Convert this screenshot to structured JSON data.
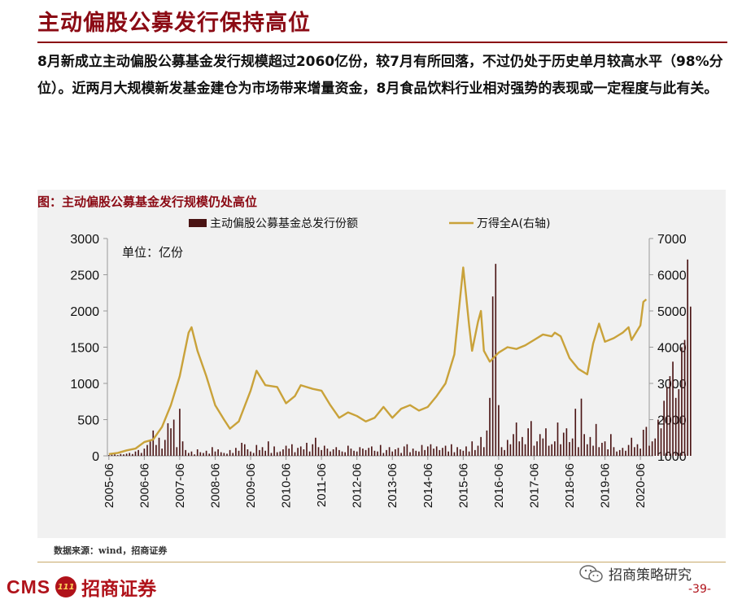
{
  "page": {
    "title": "主动偏股公募发行保持高位",
    "intro": "8月新成立主动偏股公募基金发行规模超过2060亿份，较7月有所回落，不过仍处于历史单月较高水平（98%分位）。近两月大规模新发基金建仓为市场带来增量资金，8月食品饮料行业相对强势的表现或一定程度与此有关。",
    "source": "数据来源：wind，招商证券",
    "logo_cms": "CMS",
    "logo_badge": "111",
    "logo_cn": "招商证券",
    "wechat_name": "招商策略研究",
    "page_number": "-39-"
  },
  "colors": {
    "title": "#8b0a14",
    "bar": "#4a1414",
    "line": "#c9a23a",
    "panel": "#f1f1f1",
    "brand": "#b0121a"
  },
  "icons": [
    "wechat-icon",
    "logo-badge-icon"
  ],
  "chart_data": {
    "type": "bar+line",
    "title": "图：主动偏股公募基金发行规模仍处高位",
    "unit_note": "单位：亿份",
    "legend_position": "top",
    "x_tick_labels": [
      "2005-06",
      "2006-06",
      "2007-06",
      "2008-06",
      "2009-06",
      "2010-06",
      "2011-06",
      "2012-06",
      "2013-06",
      "2014-06",
      "2015-06",
      "2016-06",
      "2017-06",
      "2018-06",
      "2019-06",
      "2020-06"
    ],
    "y_left": {
      "min": 0,
      "max": 3000,
      "ticks": [
        0,
        500,
        1000,
        1500,
        2000,
        2500,
        3000
      ]
    },
    "y_right": {
      "min": 1000,
      "max": 7000,
      "ticks": [
        1000,
        2000,
        3000,
        4000,
        5000,
        6000,
        7000
      ]
    },
    "grid": false,
    "series": [
      {
        "name": "主动偏股公募基金总发行份额",
        "type": "bar",
        "axis": "left",
        "start": "2005-06",
        "frequency": "monthly",
        "values": [
          10,
          15,
          20,
          10,
          25,
          20,
          30,
          40,
          25,
          60,
          80,
          40,
          100,
          150,
          200,
          350,
          150,
          250,
          100,
          220,
          450,
          380,
          500,
          120,
          650,
          200,
          80,
          40,
          60,
          20,
          90,
          50,
          40,
          70,
          30,
          120,
          60,
          90,
          50,
          40,
          30,
          80,
          40,
          110,
          70,
          180,
          160,
          90,
          60,
          40,
          150,
          80,
          120,
          70,
          200,
          40,
          130,
          50,
          60,
          90,
          140,
          100,
          160,
          50,
          110,
          130,
          90,
          180,
          60,
          160,
          250,
          120,
          80,
          140,
          100,
          60,
          90,
          120,
          80,
          60,
          50,
          140,
          100,
          70,
          60,
          120,
          100,
          80,
          110,
          130,
          70,
          60,
          150,
          40,
          80,
          120,
          60,
          90,
          110,
          40,
          130,
          160,
          50,
          100,
          70,
          60,
          150,
          80,
          130,
          160,
          100,
          130,
          80,
          110,
          140,
          60,
          160,
          50,
          120,
          90,
          70,
          130,
          60,
          200,
          80,
          140,
          260,
          120,
          350,
          800,
          2200,
          2650,
          700,
          120,
          80,
          220,
          160,
          300,
          460,
          200,
          260,
          160,
          380,
          480,
          140,
          200,
          300,
          240,
          380,
          140,
          160,
          200,
          460,
          160,
          320,
          380,
          190,
          240,
          650,
          120,
          790,
          300,
          160,
          260,
          140,
          440,
          120,
          180,
          200,
          90,
          300,
          120,
          60,
          80,
          110,
          70,
          150,
          250,
          120,
          160,
          100,
          360,
          400,
          140,
          200,
          240,
          500,
          380,
          760,
          950,
          1100,
          1300,
          800,
          920,
          1500,
          1600,
          2710,
          2060
        ]
      },
      {
        "name": "万得全A(右轴)",
        "type": "line",
        "axis": "right",
        "points": [
          [
            "2005-06",
            1050
          ],
          [
            "2005-09",
            1080
          ],
          [
            "2005-12",
            1150
          ],
          [
            "2006-03",
            1200
          ],
          [
            "2006-06",
            1380
          ],
          [
            "2006-09",
            1450
          ],
          [
            "2006-12",
            1800
          ],
          [
            "2007-03",
            2400
          ],
          [
            "2007-06",
            3200
          ],
          [
            "2007-09",
            4400
          ],
          [
            "2007-10",
            4550
          ],
          [
            "2007-12",
            3900
          ],
          [
            "2008-03",
            3200
          ],
          [
            "2008-06",
            2400
          ],
          [
            "2008-09",
            2000
          ],
          [
            "2008-11",
            1750
          ],
          [
            "2009-02",
            1950
          ],
          [
            "2009-06",
            2800
          ],
          [
            "2009-08",
            3350
          ],
          [
            "2009-11",
            2950
          ],
          [
            "2010-03",
            2900
          ],
          [
            "2010-06",
            2450
          ],
          [
            "2010-09",
            2650
          ],
          [
            "2010-11",
            2950
          ],
          [
            "2011-03",
            2850
          ],
          [
            "2011-06",
            2800
          ],
          [
            "2011-09",
            2400
          ],
          [
            "2011-12",
            2050
          ],
          [
            "2012-03",
            2200
          ],
          [
            "2012-06",
            2100
          ],
          [
            "2012-09",
            1950
          ],
          [
            "2012-12",
            2050
          ],
          [
            "2013-03",
            2350
          ],
          [
            "2013-06",
            2050
          ],
          [
            "2013-09",
            2300
          ],
          [
            "2013-12",
            2400
          ],
          [
            "2014-03",
            2250
          ],
          [
            "2014-06",
            2350
          ],
          [
            "2014-09",
            2650
          ],
          [
            "2014-12",
            3000
          ],
          [
            "2015-03",
            3800
          ],
          [
            "2015-06",
            6200
          ],
          [
            "2015-08",
            4600
          ],
          [
            "2015-09",
            3900
          ],
          [
            "2015-11",
            4700
          ],
          [
            "2015-12",
            5000
          ],
          [
            "2016-01",
            3900
          ],
          [
            "2016-03",
            3600
          ],
          [
            "2016-06",
            3850
          ],
          [
            "2016-09",
            4000
          ],
          [
            "2016-12",
            3950
          ],
          [
            "2017-03",
            4050
          ],
          [
            "2017-06",
            4200
          ],
          [
            "2017-09",
            4350
          ],
          [
            "2017-12",
            4300
          ],
          [
            "2018-01",
            4400
          ],
          [
            "2018-03",
            4300
          ],
          [
            "2018-06",
            3700
          ],
          [
            "2018-09",
            3400
          ],
          [
            "2018-12",
            3250
          ],
          [
            "2019-02",
            4100
          ],
          [
            "2019-04",
            4650
          ],
          [
            "2019-06",
            4150
          ],
          [
            "2019-09",
            4250
          ],
          [
            "2019-12",
            4400
          ],
          [
            "2020-02",
            4550
          ],
          [
            "2020-03",
            4200
          ],
          [
            "2020-06",
            4600
          ],
          [
            "2020-07",
            5250
          ],
          [
            "2020-08",
            5320
          ]
        ]
      }
    ]
  }
}
